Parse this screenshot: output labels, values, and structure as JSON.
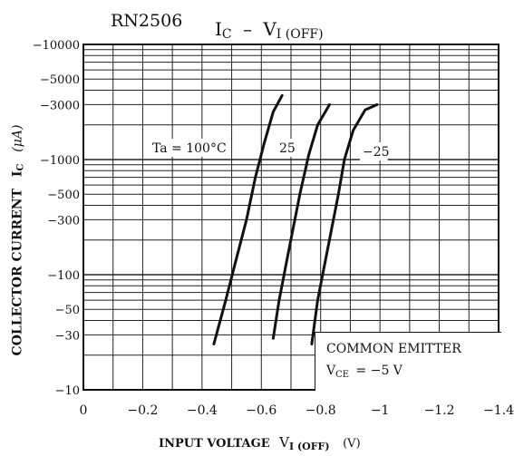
{
  "chart_data": {
    "type": "line",
    "part_number": "RN2506",
    "title": {
      "main": "I",
      "main_sub": "C",
      "dash": "–",
      "v": "V",
      "v_sub": "I (OFF)"
    },
    "xlabel": {
      "text": "INPUT VOLTAGE",
      "v": "V",
      "v_sub": "I (OFF)",
      "unit": "(V)"
    },
    "ylabel": {
      "text": "COLLECTOR CURRENT",
      "i": "I",
      "i_sub": "C",
      "unit": "(μA)"
    },
    "x_scale": "linear",
    "y_scale": "log",
    "xlim": [
      0,
      -1.4
    ],
    "ylim": [
      -10,
      -10000
    ],
    "grid": true,
    "x_ticks": [
      {
        "value": 0,
        "label": "0"
      },
      {
        "value": -0.2,
        "label": "−0.2"
      },
      {
        "value": -0.4,
        "label": "−0.4"
      },
      {
        "value": -0.6,
        "label": "−0.6"
      },
      {
        "value": -0.8,
        "label": "−0.8"
      },
      {
        "value": -1.0,
        "label": "−1"
      },
      {
        "value": -1.2,
        "label": "−1.2"
      },
      {
        "value": -1.4,
        "label": "−1.4"
      }
    ],
    "y_ticks": [
      {
        "value": -10,
        "label": "−10"
      },
      {
        "value": -30,
        "label": "−30"
      },
      {
        "value": -50,
        "label": "−50"
      },
      {
        "value": -100,
        "label": "−100"
      },
      {
        "value": -300,
        "label": "−300"
      },
      {
        "value": -500,
        "label": "−500"
      },
      {
        "value": -1000,
        "label": "−1000"
      },
      {
        "value": -3000,
        "label": "−3000"
      },
      {
        "value": -5000,
        "label": "−5000"
      },
      {
        "value": -10000,
        "label": "−10000"
      }
    ],
    "series": [
      {
        "name": "Ta = 100°C",
        "points": [
          [
            -0.44,
            -25
          ],
          [
            -0.48,
            -60
          ],
          [
            -0.51,
            -120
          ],
          [
            -0.55,
            -300
          ],
          [
            -0.58,
            -700
          ],
          [
            -0.61,
            -1400
          ],
          [
            -0.64,
            -2600
          ],
          [
            -0.67,
            -3600
          ]
        ]
      },
      {
        "name": "25",
        "points": [
          [
            -0.64,
            -28
          ],
          [
            -0.66,
            -60
          ],
          [
            -0.69,
            -150
          ],
          [
            -0.73,
            -500
          ],
          [
            -0.76,
            -1100
          ],
          [
            -0.79,
            -2000
          ],
          [
            -0.83,
            -3000
          ]
        ]
      },
      {
        "name": "−25",
        "points": [
          [
            -0.77,
            -25
          ],
          [
            -0.79,
            -60
          ],
          [
            -0.82,
            -150
          ],
          [
            -0.86,
            -500
          ],
          [
            -0.88,
            -1000
          ],
          [
            -0.91,
            -1800
          ],
          [
            -0.95,
            -2700
          ],
          [
            -0.99,
            -3000
          ]
        ]
      }
    ],
    "annotations": {
      "box_line1": "COMMON EMITTER",
      "vce_v": "V",
      "vce_sub": "CE",
      "vce_value": "= −5 V"
    }
  }
}
